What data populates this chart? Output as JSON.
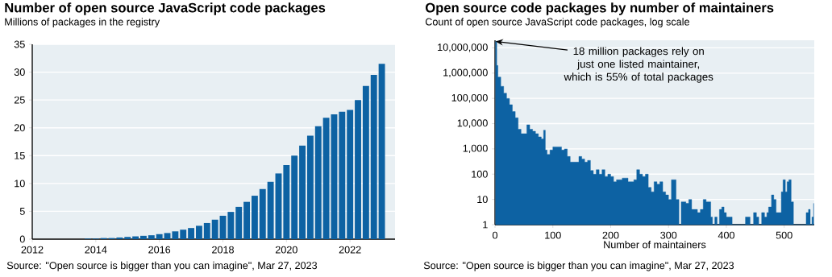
{
  "chart_data": [
    {
      "type": "bar",
      "title": "Number of open source JavaScript code packages",
      "subtitle": "Millions of packages in the registry",
      "annotations": [
        "Source: \"Open source is bigger than you can imagine\", Mar 27, 2023"
      ],
      "x": [
        "2013-10",
        "2014-01",
        "2014-04",
        "2014-07",
        "2014-10",
        "2015-01",
        "2015-04",
        "2015-07",
        "2015-10",
        "2016-01",
        "2016-04",
        "2016-07",
        "2016-10",
        "2017-01",
        "2017-04",
        "2017-07",
        "2017-10",
        "2018-01",
        "2018-04",
        "2018-07",
        "2018-10",
        "2019-01",
        "2019-04",
        "2019-07",
        "2019-10",
        "2020-01",
        "2020-04",
        "2020-07",
        "2020-10",
        "2021-01",
        "2021-04",
        "2021-07",
        "2021-10",
        "2022-01",
        "2022-04",
        "2022-07",
        "2022-10",
        "2023-01"
      ],
      "values": [
        0.1,
        0.1,
        0.2,
        0.2,
        0.3,
        0.4,
        0.5,
        0.6,
        0.7,
        0.9,
        1.1,
        1.4,
        1.7,
        2.0,
        2.4,
        2.9,
        3.5,
        4.2,
        4.9,
        5.8,
        6.7,
        7.8,
        9.0,
        10.3,
        11.8,
        13.3,
        15.0,
        16.8,
        18.6,
        20.3,
        21.8,
        22.4,
        22.9,
        23.2,
        25.0,
        27.5,
        29.5,
        31.5
      ],
      "color": "#0d62a3",
      "xlim": [
        "2012",
        "2023-06"
      ],
      "ylim": [
        0,
        35
      ],
      "xticks": [
        "2012",
        "2014",
        "2016",
        "2018",
        "2020",
        "2022"
      ],
      "yticks": [
        0,
        5,
        10,
        15,
        20,
        25,
        30,
        35
      ],
      "grid": "y"
    },
    {
      "type": "area",
      "title": "Open source code packages by number of maintainers",
      "subtitle": "Count of open source JavaScript code packages, log scale",
      "xlabel": "Number of maintainers",
      "annotations": [
        {
          "text": "18 million packages rely on just one listed maintainer, which is 55% of total packages",
          "x": 1,
          "y": 18000000
        },
        "Source: \"Open source is bigger than you can imagine\", Mar 27, 2023"
      ],
      "x": [
        1,
        3,
        5,
        10,
        15,
        20,
        25,
        30,
        35,
        40,
        45,
        50,
        55,
        60,
        65,
        70,
        75,
        80,
        84,
        87,
        90,
        95,
        100,
        110,
        115,
        120,
        125,
        130,
        140,
        145,
        150,
        155,
        160,
        165,
        170,
        175,
        180,
        185,
        190,
        195,
        200,
        205,
        210,
        220,
        230,
        240,
        245,
        250,
        255,
        260,
        265,
        270,
        275,
        280,
        285,
        290,
        295,
        300,
        305,
        310,
        313,
        318,
        322,
        330,
        335,
        340,
        350,
        355,
        360,
        365,
        370,
        373,
        376,
        380,
        384,
        388,
        392,
        396,
        400,
        405,
        410,
        430,
        433,
        437,
        441,
        447,
        452,
        456,
        461,
        466,
        470,
        473,
        478,
        482,
        486,
        490,
        495,
        498,
        502,
        505,
        508,
        512,
        516,
        535,
        538,
        542,
        545,
        548,
        551
      ],
      "values": [
        18000000,
        2000000,
        700000,
        300000,
        160000,
        100000,
        56000,
        30000,
        17000,
        6000,
        4000,
        4000,
        9000,
        6000,
        5000,
        4000,
        3000,
        2500,
        5500,
        900,
        600,
        900,
        1200,
        1200,
        900,
        1000,
        500,
        300,
        300,
        500,
        400,
        300,
        350,
        140,
        100,
        150,
        100,
        150,
        80,
        100,
        80,
        50,
        60,
        70,
        50,
        60,
        150,
        100,
        80,
        100,
        30,
        20,
        50,
        40,
        50,
        20,
        15,
        10,
        60,
        60,
        10,
        null,
        8,
        7,
        10,
        4,
        3,
        4,
        10,
        8,
        8,
        2,
        null,
        2,
        null,
        4,
        5,
        3,
        2,
        2,
        null,
        null,
        2,
        2,
        null,
        3,
        2,
        null,
        3,
        2,
        3,
        5,
        15,
        10,
        3,
        3,
        20,
        60,
        20,
        50,
        60,
        8,
        null,
        null,
        3,
        4,
        null,
        2,
        7
      ],
      "color": "#0d62a3",
      "xlim": [
        0,
        552
      ],
      "ylim": [
        1,
        20000000
      ],
      "log": "y",
      "xticks": [
        0,
        100,
        200,
        300,
        400,
        500
      ],
      "yticks": [
        1,
        10,
        100,
        {
          "value": 1000,
          "label": "1,000"
        },
        {
          "value": 10000,
          "label": "10,000"
        },
        {
          "value": 100000,
          "label": "100,000"
        },
        {
          "value": 1000000,
          "label": "1,000,000"
        },
        {
          "value": 10000000,
          "label": "10,000,000"
        }
      ],
      "grid": "y"
    }
  ]
}
